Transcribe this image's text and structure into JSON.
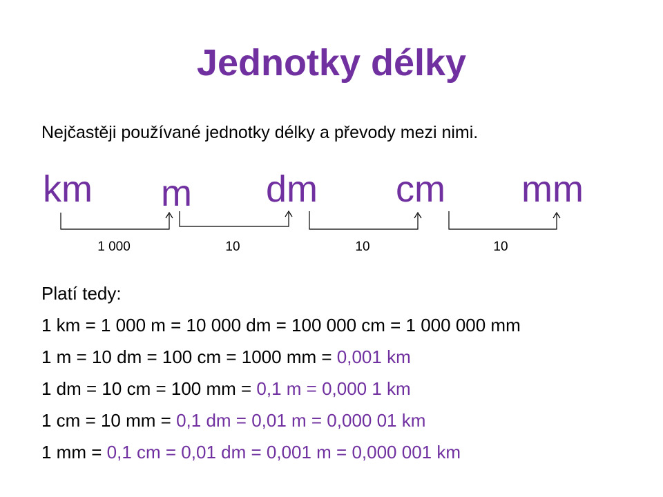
{
  "title": "Jednotky délky",
  "subtitle": "Nejčastěji používané jednotky délky a převody mezi nimi.",
  "units": [
    "km",
    "m",
    "dm",
    "cm",
    "mm"
  ],
  "factors": [
    "1 000",
    "10",
    "10",
    "10"
  ],
  "conclusion_label": "Platí tedy:",
  "lines": [
    [
      "1 km = 1 000 m = 10 000 dm = 100 000 cm = 1 000 000 mm"
    ],
    [
      "1 m = 10 dm = 100 cm = 1000 mm = ",
      "0,001 km"
    ],
    [
      "1 dm = 10 cm = 100 mm = ",
      "0,1 m = 0,000 1 km"
    ],
    [
      "1 cm = 10 mm = ",
      "0,1 dm = 0,01 m = 0,000 01 km"
    ],
    [
      "1 mm = ",
      "0,1 cm = 0,01 dm = 0,001 m = 0,000 001 km"
    ]
  ]
}
